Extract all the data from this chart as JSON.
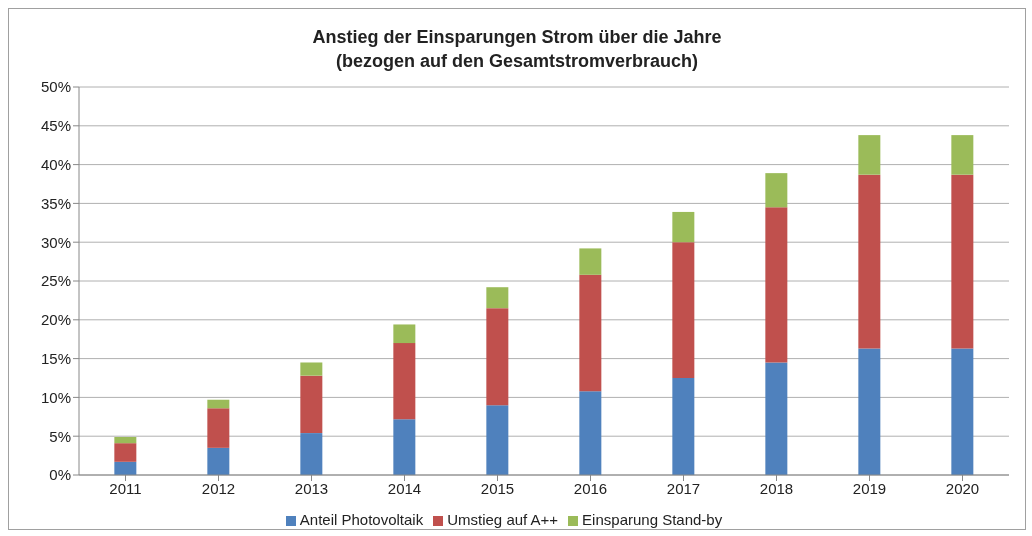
{
  "chart_data": {
    "type": "bar",
    "stacked": true,
    "title": "Anstieg der Einsparungen Strom über die Jahre",
    "subtitle": "(bezogen auf den Gesamtstromverbrauch)",
    "categories": [
      "2011",
      "2012",
      "2013",
      "2014",
      "2015",
      "2016",
      "2017",
      "2018",
      "2019",
      "2020"
    ],
    "series": [
      {
        "name": "Anteil Photovoltaik",
        "color": "#4f81bd",
        "values": [
          1.7,
          3.5,
          5.4,
          7.2,
          9.0,
          10.8,
          12.5,
          14.5,
          16.3,
          16.3
        ]
      },
      {
        "name": "Umstieg auf A++",
        "color": "#c0504d",
        "values": [
          2.4,
          5.1,
          7.4,
          9.8,
          12.5,
          15.0,
          17.5,
          20.0,
          22.4,
          22.4
        ]
      },
      {
        "name": "Einsparung Stand-by",
        "color": "#9bbb59",
        "values": [
          0.8,
          1.1,
          1.7,
          2.4,
          2.7,
          3.4,
          3.9,
          4.4,
          5.1,
          5.1
        ]
      }
    ],
    "ylim": [
      0,
      50
    ],
    "yticks": [
      {
        "value": 0,
        "label": "0%"
      },
      {
        "value": 5,
        "label": "5%"
      },
      {
        "value": 10,
        "label": "10%"
      },
      {
        "value": 15,
        "label": "15%"
      },
      {
        "value": 20,
        "label": "20%"
      },
      {
        "value": 25,
        "label": "25%"
      },
      {
        "value": 30,
        "label": "30%"
      },
      {
        "value": 35,
        "label": "35%"
      },
      {
        "value": 40,
        "label": "40%"
      },
      {
        "value": 45,
        "label": "45%"
      },
      {
        "value": 50,
        "label": "50%"
      }
    ],
    "grid": "y",
    "legend": "bottom"
  }
}
